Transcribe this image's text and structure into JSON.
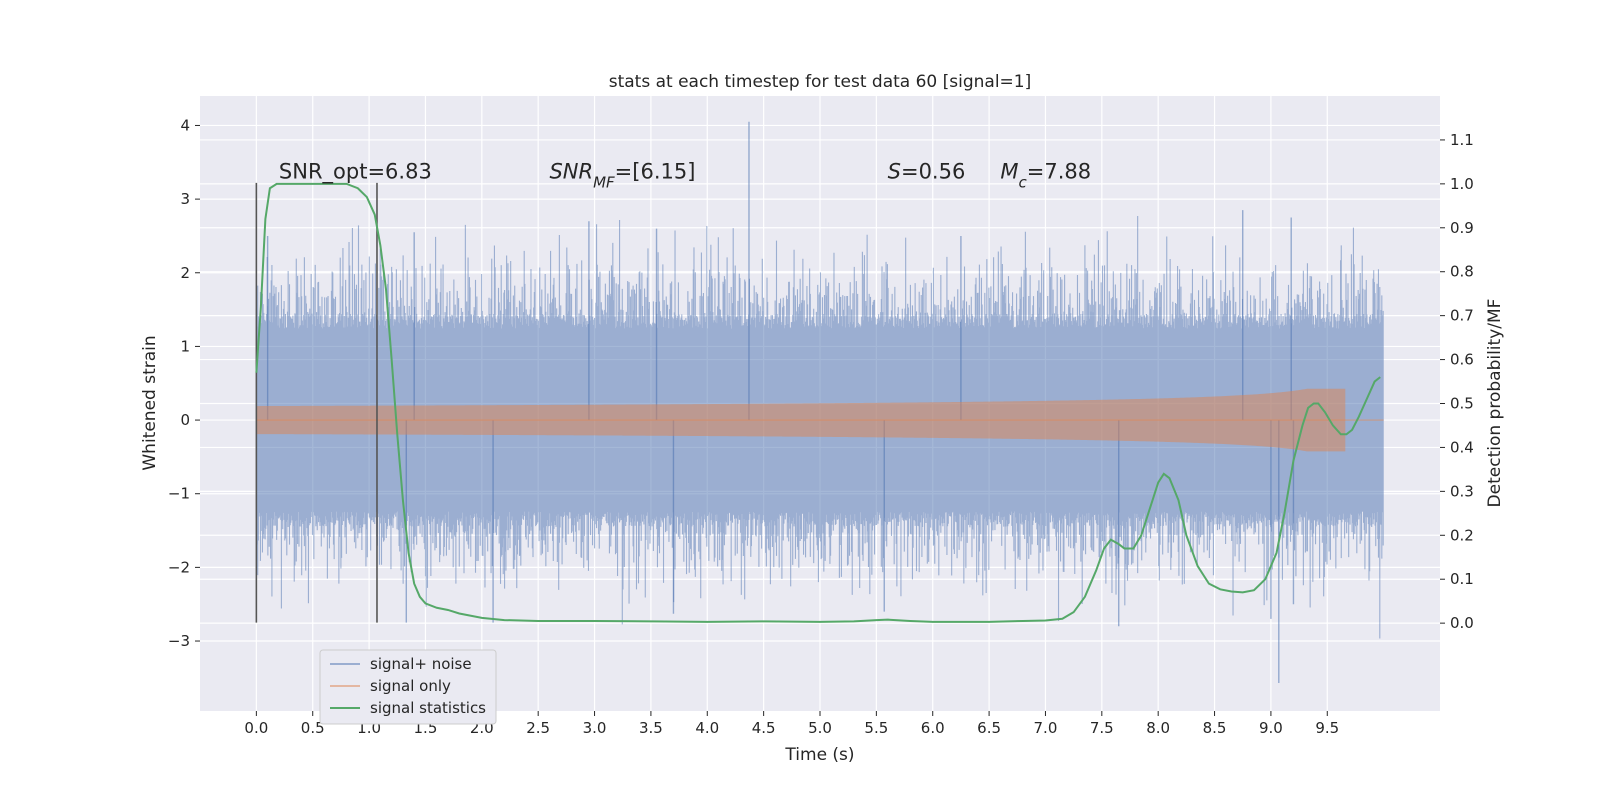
{
  "chart_data": {
    "type": "line",
    "title": "stats at each timestep for test data 60 [signal=1]",
    "xlabel": "Time (s)",
    "ylabel": "Whitened strain",
    "y2label": "Detection probability/MF",
    "xlim": [
      -0.5,
      10.5
    ],
    "ylim": [
      -3.95,
      4.4
    ],
    "y2lim": [
      -0.2,
      1.2
    ],
    "grid": true,
    "legend_position": "lower-left",
    "xticks": [
      0.0,
      0.5,
      1.0,
      1.5,
      2.0,
      2.5,
      3.0,
      3.5,
      4.0,
      4.5,
      5.0,
      5.5,
      6.0,
      6.5,
      7.0,
      7.5,
      8.0,
      8.5,
      9.0,
      9.5
    ],
    "xtick_labels": [
      "0.0",
      "0.5",
      "1.0",
      "1.5",
      "2.0",
      "2.5",
      "3.0",
      "3.5",
      "4.0",
      "4.5",
      "5.0",
      "5.5",
      "6.0",
      "6.5",
      "7.0",
      "7.5",
      "8.0",
      "8.5",
      "9.0",
      "9.5"
    ],
    "yticks": [
      -3,
      -2,
      -1,
      0,
      1,
      2,
      3,
      4
    ],
    "ytick_labels": [
      "−3",
      "−2",
      "−1",
      "0",
      "1",
      "2",
      "3",
      "4"
    ],
    "y2ticks": [
      0.0,
      0.1,
      0.2,
      0.3,
      0.4,
      0.5,
      0.6,
      0.7,
      0.8,
      0.9,
      1.0,
      1.1
    ],
    "y2tick_labels": [
      "0.0",
      "0.1",
      "0.2",
      "0.3",
      "0.4",
      "0.5",
      "0.6",
      "0.7",
      "0.8",
      "0.9",
      "1.0",
      "1.1"
    ],
    "annotations": [
      {
        "text": "SNR_opt=6.83",
        "x": 0.2,
        "y": 3.28
      },
      {
        "text": "SNR_MF=[6.15]",
        "x": 2.6,
        "y": 3.28
      },
      {
        "text": "S=0.56",
        "x": 5.6,
        "y": 3.28
      },
      {
        "text": "M_c=7.88",
        "x": 6.6,
        "y": 3.28
      }
    ],
    "vlines": [
      {
        "x": 0.0,
        "ymin": -2.75,
        "ymax": 3.22
      },
      {
        "x": 1.07,
        "ymin": -2.75,
        "ymax": 3.22
      }
    ],
    "series": [
      {
        "name": "signal+ noise",
        "color": "#4c72b0",
        "axis": "left",
        "x_range": [
          0.0,
          10.0
        ],
        "envelope_typical": 1.35,
        "notable_spikes": [
          {
            "x": 4.37,
            "y": 4.05
          },
          {
            "x": 9.07,
            "y": -3.57
          },
          {
            "x": 7.65,
            "y": -2.8
          },
          {
            "x": 1.33,
            "y": -2.75
          },
          {
            "x": 2.1,
            "y": -2.75
          },
          {
            "x": 3.7,
            "y": -2.63
          },
          {
            "x": 9.0,
            "y": -2.7
          },
          {
            "x": 2.95,
            "y": 2.7
          },
          {
            "x": 8.75,
            "y": 2.85
          },
          {
            "x": 9.18,
            "y": 2.75
          },
          {
            "x": 0.1,
            "y": 2.5
          },
          {
            "x": 3.55,
            "y": 2.6
          },
          {
            "x": 6.25,
            "y": 2.5
          },
          {
            "x": 9.2,
            "y": -2.5
          },
          {
            "x": 1.4,
            "y": 2.55
          },
          {
            "x": 5.57,
            "y": -2.6
          }
        ]
      },
      {
        "name": "signal only",
        "color": "#dd8452",
        "axis": "left",
        "x_range": [
          0.0,
          9.67
        ],
        "chirp_amplitude_at_end": 0.75,
        "after_merger_value": 0.0
      },
      {
        "name": "signal statistics",
        "color": "#55a868",
        "axis": "right",
        "x": [
          0.0,
          0.04,
          0.08,
          0.12,
          0.18,
          0.25,
          0.35,
          0.5,
          0.65,
          0.8,
          0.9,
          0.98,
          1.05,
          1.1,
          1.15,
          1.2,
          1.25,
          1.3,
          1.35,
          1.4,
          1.45,
          1.5,
          1.6,
          1.7,
          1.8,
          2.0,
          2.2,
          2.5,
          3.0,
          3.5,
          4.0,
          4.5,
          5.0,
          5.3,
          5.5,
          5.6,
          5.8,
          6.0,
          6.5,
          6.8,
          7.0,
          7.15,
          7.25,
          7.35,
          7.45,
          7.52,
          7.58,
          7.65,
          7.7,
          7.78,
          7.85,
          7.95,
          8.0,
          8.05,
          8.1,
          8.18,
          8.25,
          8.35,
          8.45,
          8.55,
          8.65,
          8.75,
          8.85,
          8.95,
          9.05,
          9.12,
          9.2,
          9.28,
          9.33,
          9.38,
          9.42,
          9.48,
          9.55,
          9.62,
          9.67,
          9.72,
          9.78,
          9.85,
          9.92,
          9.97
        ],
        "y": [
          0.57,
          0.72,
          0.92,
          0.99,
          1.0,
          1.0,
          1.0,
          1.0,
          1.0,
          1.0,
          0.99,
          0.97,
          0.93,
          0.86,
          0.76,
          0.6,
          0.43,
          0.28,
          0.16,
          0.09,
          0.06,
          0.045,
          0.035,
          0.03,
          0.022,
          0.012,
          0.007,
          0.005,
          0.005,
          0.004,
          0.003,
          0.004,
          0.003,
          0.004,
          0.007,
          0.008,
          0.005,
          0.003,
          0.003,
          0.005,
          0.006,
          0.01,
          0.025,
          0.06,
          0.12,
          0.17,
          0.19,
          0.18,
          0.17,
          0.17,
          0.2,
          0.28,
          0.32,
          0.34,
          0.33,
          0.28,
          0.2,
          0.13,
          0.09,
          0.077,
          0.072,
          0.07,
          0.075,
          0.1,
          0.16,
          0.25,
          0.37,
          0.45,
          0.49,
          0.5,
          0.5,
          0.48,
          0.45,
          0.43,
          0.43,
          0.44,
          0.47,
          0.51,
          0.55,
          0.56
        ]
      }
    ]
  }
}
